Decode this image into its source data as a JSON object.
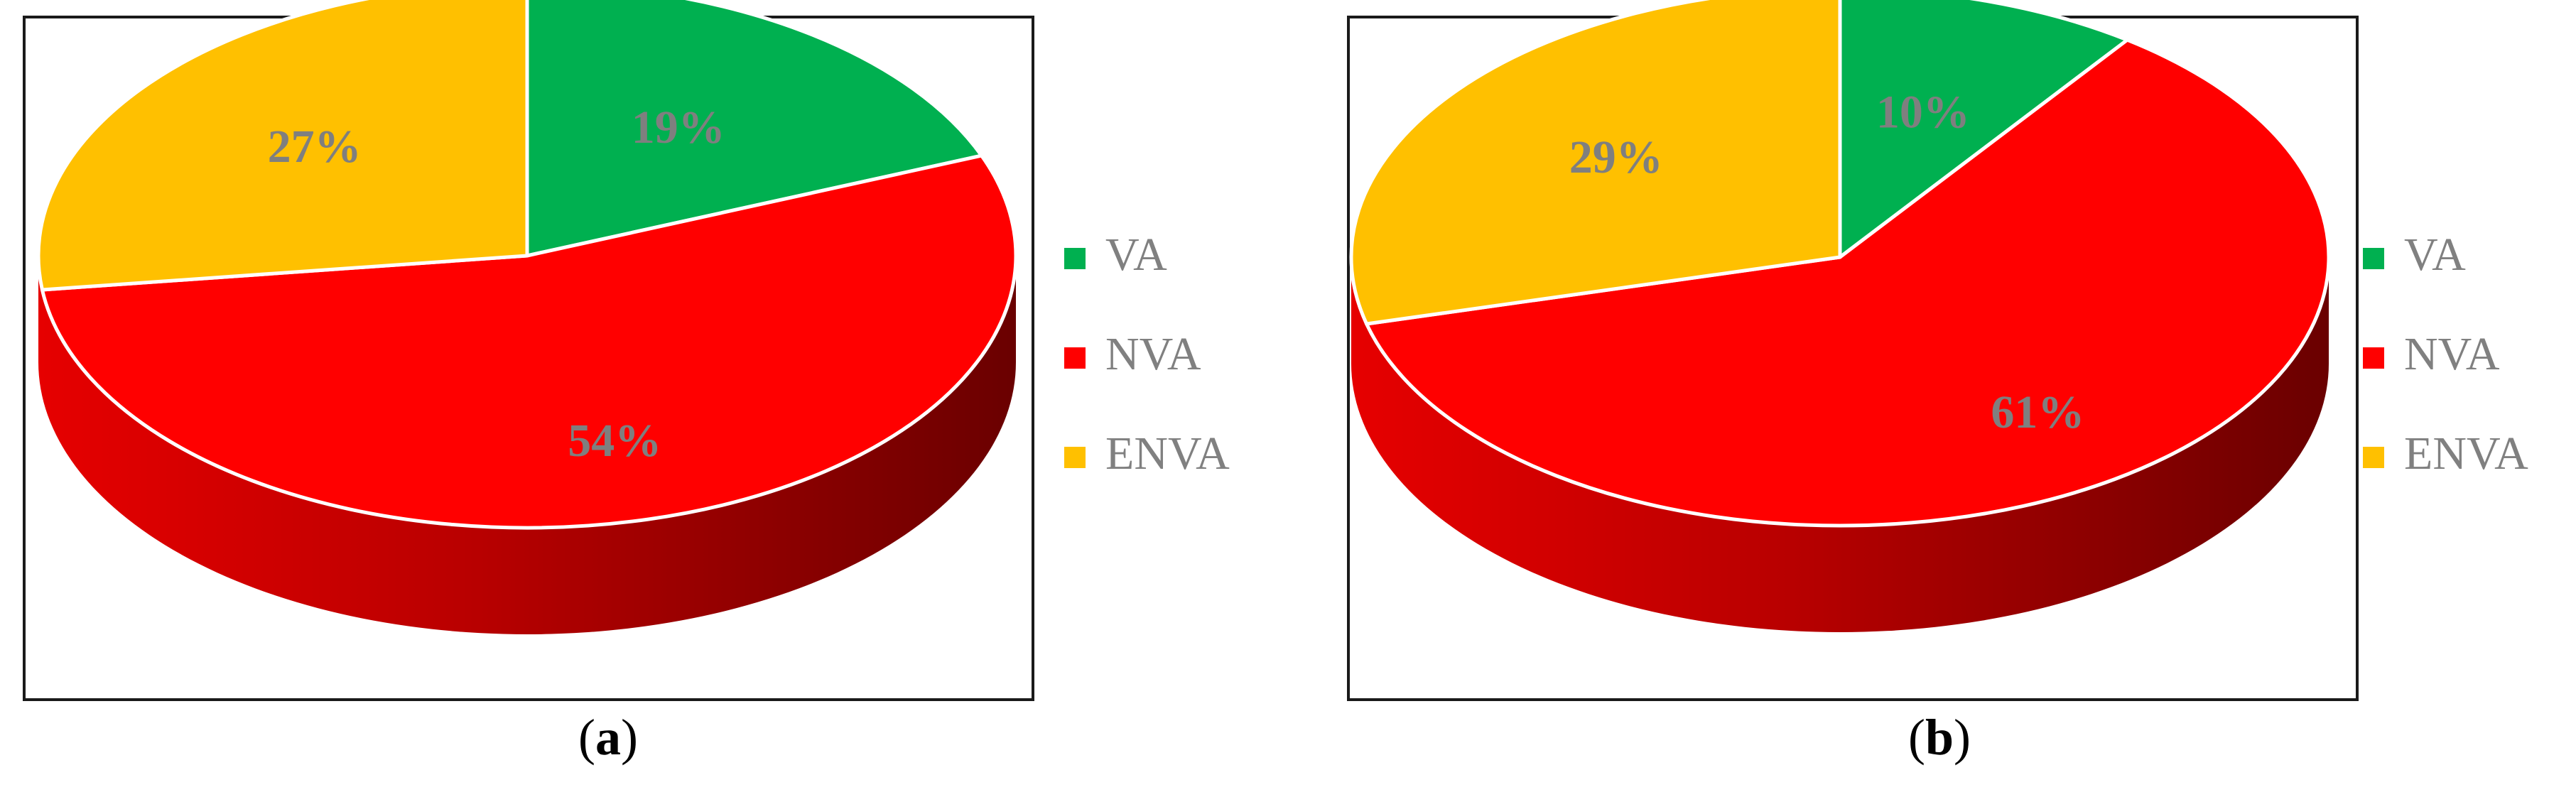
{
  "chart_data": [
    {
      "type": "pie",
      "panel_label": "a",
      "categories": [
        "VA",
        "NVA",
        "ENVA"
      ],
      "values": [
        19,
        54,
        27
      ],
      "value_labels": [
        "19%",
        "54%",
        "27%"
      ],
      "colors": [
        "#00b050",
        "#ff0000",
        "#ffc000"
      ],
      "legend": {
        "placement": "right",
        "entries": [
          "VA",
          "NVA",
          "ENVA"
        ]
      }
    },
    {
      "type": "pie",
      "panel_label": "b",
      "categories": [
        "VA",
        "NVA",
        "ENVA"
      ],
      "values": [
        10,
        61,
        29
      ],
      "value_labels": [
        "10%",
        "61%",
        "29%"
      ],
      "colors": [
        "#00b050",
        "#ff0000",
        "#ffc000"
      ],
      "legend": {
        "placement": "right",
        "entries": [
          "VA",
          "NVA",
          "ENVA"
        ]
      }
    }
  ]
}
